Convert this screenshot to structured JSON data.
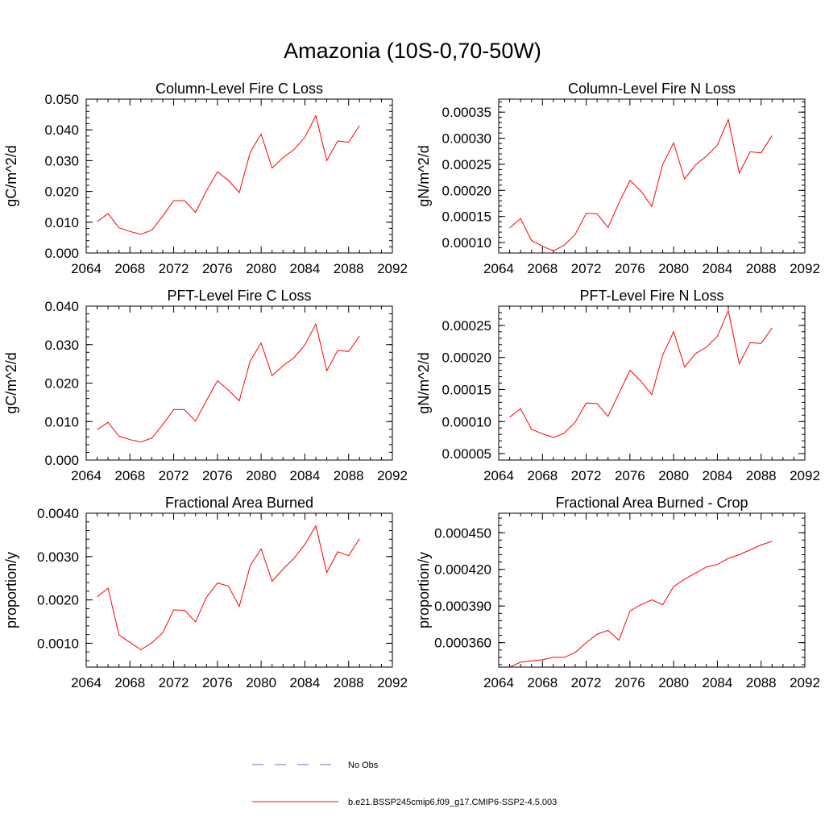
{
  "title": "Amazonia (10S-0,70-50W)",
  "colors": {
    "model": "#ff0000",
    "obs": "#6a6ad0",
    "axis": "#000000"
  },
  "legend": {
    "obs_label": "No Obs",
    "model_label": "b.e21.BSSP245cmip6.f09_g17.CMIP6-SSP2-4.5.003"
  },
  "chart_data": [
    {
      "type": "line",
      "title": "Column-Level Fire C Loss",
      "ylabel": "gC/m^2/d",
      "xlim": [
        2064,
        2092
      ],
      "ylim": [
        0.0,
        0.05
      ],
      "xticks": [
        "2064",
        "2068",
        "2072",
        "2076",
        "2080",
        "2084",
        "2088",
        "2092"
      ],
      "yticks": [
        0.0,
        0.01,
        0.02,
        0.03,
        0.04,
        0.05
      ],
      "yticklabels": [
        "0.000",
        "0.010",
        "0.020",
        "0.030",
        "0.040",
        "0.050"
      ],
      "x": [
        2065,
        2066,
        2067,
        2068,
        2069,
        2070,
        2071,
        2072,
        2073,
        2074,
        2075,
        2076,
        2077,
        2078,
        2079,
        2080,
        2081,
        2082,
        2083,
        2084,
        2085,
        2086,
        2087,
        2088,
        2089
      ],
      "values": [
        0.0102,
        0.0128,
        0.0082,
        0.007,
        0.0061,
        0.0074,
        0.012,
        0.017,
        0.017,
        0.0132,
        0.0202,
        0.0264,
        0.0236,
        0.0196,
        0.0328,
        0.0386,
        0.0276,
        0.031,
        0.0336,
        0.0376,
        0.0446,
        0.03,
        0.0364,
        0.036,
        0.0414
      ]
    },
    {
      "type": "line",
      "title": "Column-Level Fire N Loss",
      "ylabel": "gN/m^2/d",
      "xlim": [
        2064,
        2092
      ],
      "ylim": [
        8e-05,
        0.000375
      ],
      "xticks": [
        "2064",
        "2068",
        "2072",
        "2076",
        "2080",
        "2084",
        "2088",
        "2092"
      ],
      "yticks": [
        0.0001,
        0.00015,
        0.0002,
        0.00025,
        0.0003,
        0.00035
      ],
      "yticklabels": [
        "0.00010",
        "0.00015",
        "0.00020",
        "0.00025",
        "0.00030",
        "0.00035"
      ],
      "x": [
        2065,
        2066,
        2067,
        2068,
        2069,
        2070,
        2071,
        2072,
        2073,
        2074,
        2075,
        2076,
        2077,
        2078,
        2079,
        2080,
        2081,
        2082,
        2083,
        2084,
        2085,
        2086,
        2087,
        2088,
        2089
      ],
      "values": [
        0.000128,
        0.000146,
        0.000104,
        9.3e-05,
        8.4e-05,
        9.5e-05,
        0.000116,
        0.000156,
        0.000155,
        0.000129,
        0.000176,
        0.000219,
        0.000199,
        0.000169,
        0.00025,
        0.000291,
        0.000222,
        0.000249,
        0.000266,
        0.000287,
        0.000336,
        0.000233,
        0.000274,
        0.000272,
        0.000305
      ]
    },
    {
      "type": "line",
      "title": "PFT-Level Fire C Loss",
      "ylabel": "gC/m^2/d",
      "xlim": [
        2064,
        2092
      ],
      "ylim": [
        0.0,
        0.04
      ],
      "xticks": [
        "2064",
        "2068",
        "2072",
        "2076",
        "2080",
        "2084",
        "2088",
        "2092"
      ],
      "yticks": [
        0.0,
        0.01,
        0.02,
        0.03,
        0.04
      ],
      "yticklabels": [
        "0.000",
        "0.010",
        "0.020",
        "0.030",
        "0.040"
      ],
      "x": [
        2065,
        2066,
        2067,
        2068,
        2069,
        2070,
        2071,
        2072,
        2073,
        2074,
        2075,
        2076,
        2077,
        2078,
        2079,
        2080,
        2081,
        2082,
        2083,
        2084,
        2085,
        2086,
        2087,
        2088,
        2089
      ],
      "values": [
        0.0079,
        0.0098,
        0.0062,
        0.0053,
        0.0047,
        0.0057,
        0.0092,
        0.0131,
        0.0131,
        0.0101,
        0.0155,
        0.0206,
        0.0182,
        0.0154,
        0.0258,
        0.0304,
        0.0219,
        0.0245,
        0.0266,
        0.0299,
        0.0354,
        0.0232,
        0.0285,
        0.0282,
        0.0322
      ]
    },
    {
      "type": "line",
      "title": "PFT-Level Fire N Loss",
      "ylabel": "gN/m^2/d",
      "xlim": [
        2064,
        2092
      ],
      "ylim": [
        4e-05,
        0.00028
      ],
      "xticks": [
        "2064",
        "2068",
        "2072",
        "2076",
        "2080",
        "2084",
        "2088",
        "2092"
      ],
      "yticks": [
        5e-05,
        0.0001,
        0.00015,
        0.0002,
        0.00025
      ],
      "yticklabels": [
        "0.00005",
        "0.00010",
        "0.00015",
        "0.00020",
        "0.00025"
      ],
      "x": [
        2065,
        2066,
        2067,
        2068,
        2069,
        2070,
        2071,
        2072,
        2073,
        2074,
        2075,
        2076,
        2077,
        2078,
        2079,
        2080,
        2081,
        2082,
        2083,
        2084,
        2085,
        2086,
        2087,
        2088,
        2089
      ],
      "values": [
        0.000107,
        0.00012,
        8.8e-05,
        8.1e-05,
        7.5e-05,
        8.2e-05,
        9.9e-05,
        0.000129,
        0.000128,
        0.000108,
        0.000144,
        0.00018,
        0.000163,
        0.000142,
        0.000204,
        0.00024,
        0.000185,
        0.000206,
        0.000216,
        0.000233,
        0.000273,
        0.00019,
        0.000223,
        0.000222,
        0.000246
      ]
    },
    {
      "type": "line",
      "title": "Fractional Area Burned",
      "ylabel": "proportion/y",
      "xlim": [
        2064,
        2092
      ],
      "ylim": [
        0.00045,
        0.004
      ],
      "xticks": [
        "2064",
        "2068",
        "2072",
        "2076",
        "2080",
        "2084",
        "2088",
        "2092"
      ],
      "yticks": [
        0.001,
        0.002,
        0.003,
        0.004
      ],
      "yticklabels": [
        "0.0010",
        "0.0020",
        "0.0030",
        "0.0040"
      ],
      "x": [
        2065,
        2066,
        2067,
        2068,
        2069,
        2070,
        2071,
        2072,
        2073,
        2074,
        2075,
        2076,
        2077,
        2078,
        2079,
        2080,
        2081,
        2082,
        2083,
        2084,
        2085,
        2086,
        2087,
        2088,
        2089
      ],
      "values": [
        0.00207,
        0.00227,
        0.00119,
        0.00102,
        0.00085,
        0.00101,
        0.00124,
        0.00177,
        0.00176,
        0.00149,
        0.00206,
        0.00239,
        0.00232,
        0.00185,
        0.00279,
        0.00318,
        0.00243,
        0.00271,
        0.00296,
        0.00328,
        0.00371,
        0.00263,
        0.00311,
        0.00302,
        0.00341
      ]
    },
    {
      "type": "line",
      "title": "Fractional Area Burned - Crop",
      "ylabel": "proportion/y",
      "xlim": [
        2064,
        2092
      ],
      "ylim": [
        0.00034,
        0.000466
      ],
      "xticks": [
        "2064",
        "2068",
        "2072",
        "2076",
        "2080",
        "2084",
        "2088",
        "2092"
      ],
      "yticks": [
        0.00036,
        0.00039,
        0.00042,
        0.00045
      ],
      "yticklabels": [
        "0.000360",
        "0.000390",
        "0.000420",
        "0.000450"
      ],
      "x": [
        2065,
        2066,
        2067,
        2068,
        2069,
        2070,
        2071,
        2072,
        2073,
        2074,
        2075,
        2076,
        2077,
        2078,
        2079,
        2080,
        2081,
        2082,
        2083,
        2084,
        2085,
        2086,
        2087,
        2088,
        2089
      ],
      "values": [
        0.00034,
        0.000344,
        0.000345,
        0.000346,
        0.000348,
        0.000348,
        0.000352,
        0.00036,
        0.000367,
        0.00037,
        0.000362,
        0.000386,
        0.000391,
        0.000395,
        0.000391,
        0.000406,
        0.000412,
        0.000417,
        0.000422,
        0.000424,
        0.000429,
        0.000432,
        0.000436,
        0.00044,
        0.000443
      ]
    }
  ]
}
